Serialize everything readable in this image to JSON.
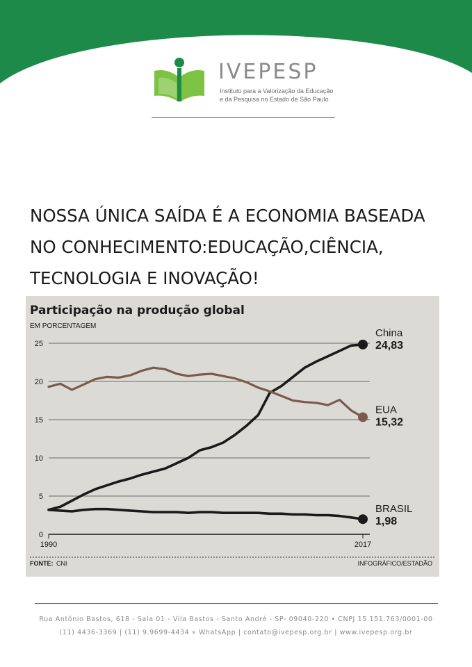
{
  "brand": {
    "name": "IVEPESP",
    "tagline_line1": "Instituto para a Valorização da Educação",
    "tagline_line2": "e da Pesquisa no Estado de São Paulo"
  },
  "headline": {
    "line1": "NOSSA ÚNICA SAÍDA É A ECONOMIA BASEADA",
    "line2": "NO CONHECIMENTO:EDUCAÇÃO,CIÊNCIA,",
    "line3": "TECNOLOGIA E INOVAÇÃO!"
  },
  "colors": {
    "brand_green": "#1e8a4a",
    "logo_green": "#7dc242",
    "paper": "#dcdad5",
    "china": "#1a1a1a",
    "eua": "#7a5a4e",
    "brasil": "#1a1a1a"
  },
  "chart_data": {
    "type": "line",
    "title": "Participação na produção global",
    "subtitle": "EM PORCENTAGEM",
    "x_tick_labels": [
      "1990",
      "2017"
    ],
    "xlim": [
      1990,
      2017
    ],
    "ylim": [
      0,
      25
    ],
    "y_ticks": [
      0,
      5,
      10,
      15,
      20,
      25
    ],
    "grid": true,
    "x": [
      1990,
      1991,
      1992,
      1993,
      1994,
      1995,
      1996,
      1997,
      1998,
      1999,
      2000,
      2001,
      2002,
      2003,
      2004,
      2005,
      2006,
      2007,
      2008,
      2009,
      2010,
      2011,
      2012,
      2013,
      2014,
      2015,
      2016,
      2017
    ],
    "series": [
      {
        "name": "China",
        "end_label": "24,83",
        "values": [
          3.2,
          3.6,
          4.4,
          5.2,
          5.9,
          6.4,
          6.9,
          7.3,
          7.8,
          8.2,
          8.6,
          9.3,
          10.0,
          11.0,
          11.4,
          12.0,
          13.0,
          14.2,
          15.6,
          18.5,
          19.4,
          20.6,
          21.8,
          22.6,
          23.3,
          24.0,
          24.7,
          24.83
        ]
      },
      {
        "name": "EUA",
        "end_label": "15,32",
        "values": [
          19.3,
          19.7,
          18.9,
          19.6,
          20.3,
          20.6,
          20.5,
          20.8,
          21.4,
          21.8,
          21.6,
          21.0,
          20.7,
          20.9,
          21.0,
          20.7,
          20.4,
          19.9,
          19.2,
          18.7,
          18.1,
          17.5,
          17.3,
          17.2,
          16.9,
          17.6,
          16.2,
          15.32
        ]
      },
      {
        "name": "BRASIL",
        "end_label": "1,98",
        "values": [
          3.2,
          3.1,
          3.0,
          3.2,
          3.3,
          3.3,
          3.2,
          3.1,
          3.0,
          2.9,
          2.9,
          2.9,
          2.8,
          2.9,
          2.9,
          2.8,
          2.8,
          2.8,
          2.8,
          2.7,
          2.7,
          2.6,
          2.6,
          2.5,
          2.5,
          2.4,
          2.2,
          1.98
        ]
      }
    ],
    "source_label": "FONTE:",
    "source": "CNI",
    "credit": "INFOGRÁFICO/ESTADÃO"
  },
  "footer": {
    "line1": "Rua Antônio Bastos, 618 - Sala 01 - Vila Bastos - Santo André - SP- 09040-220 • CNPJ 15.151.763/0001-00",
    "line2": "(11) 4436-3369 | (11) 9.9699-4434 » WhatsApp | contato@ivepesp.org.br | www.ivepesp.org.br"
  }
}
